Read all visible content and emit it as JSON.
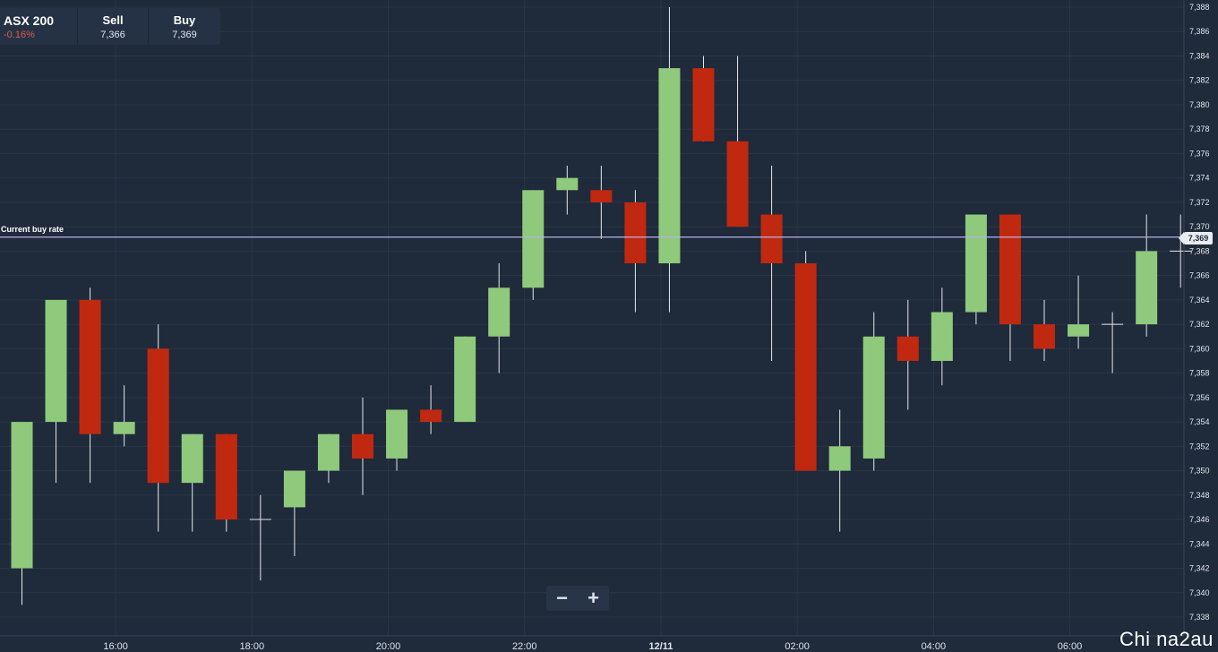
{
  "instrument": {
    "name": "ASX 200",
    "change": "-0.16%",
    "sell_label": "Sell",
    "sell_value": "7,366",
    "buy_label": "Buy",
    "buy_value": "7,369"
  },
  "current_rate": {
    "label": "Current buy rate",
    "value_label": "7,369"
  },
  "zoom": {
    "minus": "−",
    "plus": "+"
  },
  "watermark": "Chi na2au",
  "colors": {
    "background": "#1f2a3a",
    "bullish": "#8fc97c",
    "bearish": "#c0290f",
    "buy_rate_line": "#b9b2e8",
    "gridline": "#2a3648"
  },
  "chart_data": {
    "type": "candlestick",
    "current_buy_rate": 7369,
    "ylim": [
      7337,
      7389
    ],
    "y_ticks": [
      "7,338",
      "7,340",
      "7,342",
      "7,344",
      "7,346",
      "7,348",
      "7,350",
      "7,352",
      "7,354",
      "7,356",
      "7,358",
      "7,360",
      "7,362",
      "7,364",
      "7,366",
      "7,368",
      "7,370",
      "7,372",
      "7,374",
      "7,376",
      "7,378",
      "7,380",
      "7,382",
      "7,384",
      "7,386",
      "7,388"
    ],
    "x_ticks": [
      "16:00",
      "18:00",
      "20:00",
      "22:00",
      "12/11",
      "02:00",
      "04:00",
      "06:00"
    ],
    "x_tick_bars": [
      2.75,
      6.75,
      10.75,
      14.75,
      18.75,
      22.75,
      26.75,
      30.75
    ],
    "candles": [
      {
        "open": 7342,
        "high": 7354,
        "low": 7339,
        "close": 7354
      },
      {
        "open": 7354,
        "high": 7364,
        "low": 7349,
        "close": 7364
      },
      {
        "open": 7364,
        "high": 7365,
        "low": 7349,
        "close": 7353
      },
      {
        "open": 7353,
        "high": 7357,
        "low": 7352,
        "close": 7354
      },
      {
        "open": 7360,
        "high": 7362,
        "low": 7345,
        "close": 7349
      },
      {
        "open": 7349,
        "high": 7353,
        "low": 7345,
        "close": 7353
      },
      {
        "open": 7353,
        "high": 7353,
        "low": 7345,
        "close": 7346
      },
      {
        "open": 7346,
        "high": 7348,
        "low": 7341,
        "close": 7346
      },
      {
        "open": 7347,
        "high": 7350,
        "low": 7343,
        "close": 7350
      },
      {
        "open": 7350,
        "high": 7353,
        "low": 7349,
        "close": 7353
      },
      {
        "open": 7353,
        "high": 7356,
        "low": 7348,
        "close": 7351
      },
      {
        "open": 7351,
        "high": 7355,
        "low": 7350,
        "close": 7355
      },
      {
        "open": 7355,
        "high": 7357,
        "low": 7353,
        "close": 7354
      },
      {
        "open": 7354,
        "high": 7361,
        "low": 7354,
        "close": 7361
      },
      {
        "open": 7361,
        "high": 7367,
        "low": 7358,
        "close": 7365
      },
      {
        "open": 7365,
        "high": 7373,
        "low": 7364,
        "close": 7373
      },
      {
        "open": 7373,
        "high": 7375,
        "low": 7371,
        "close": 7374
      },
      {
        "open": 7373,
        "high": 7375,
        "low": 7369,
        "close": 7372
      },
      {
        "open": 7372,
        "high": 7373,
        "low": 7363,
        "close": 7367
      },
      {
        "open": 7367,
        "high": 7388,
        "low": 7363,
        "close": 7383
      },
      {
        "open": 7383,
        "high": 7384,
        "low": 7377,
        "close": 7377
      },
      {
        "open": 7377,
        "high": 7384,
        "low": 7370,
        "close": 7370
      },
      {
        "open": 7371,
        "high": 7375,
        "low": 7359,
        "close": 7367
      },
      {
        "open": 7367,
        "high": 7368,
        "low": 7350,
        "close": 7350
      },
      {
        "open": 7350,
        "high": 7355,
        "low": 7345,
        "close": 7352
      },
      {
        "open": 7351,
        "high": 7363,
        "low": 7350,
        "close": 7361
      },
      {
        "open": 7361,
        "high": 7364,
        "low": 7355,
        "close": 7359
      },
      {
        "open": 7359,
        "high": 7365,
        "low": 7357,
        "close": 7363
      },
      {
        "open": 7363,
        "high": 7371,
        "low": 7362,
        "close": 7371
      },
      {
        "open": 7371,
        "high": 7371,
        "low": 7359,
        "close": 7362
      },
      {
        "open": 7362,
        "high": 7364,
        "low": 7359,
        "close": 7360
      },
      {
        "open": 7361,
        "high": 7366,
        "low": 7360,
        "close": 7362
      },
      {
        "open": 7362,
        "high": 7363,
        "low": 7358,
        "close": 7362
      },
      {
        "open": 7362,
        "high": 7371,
        "low": 7361,
        "close": 7368
      },
      {
        "open": 7368,
        "high": 7371,
        "low": 7365,
        "close": 7368
      }
    ]
  }
}
